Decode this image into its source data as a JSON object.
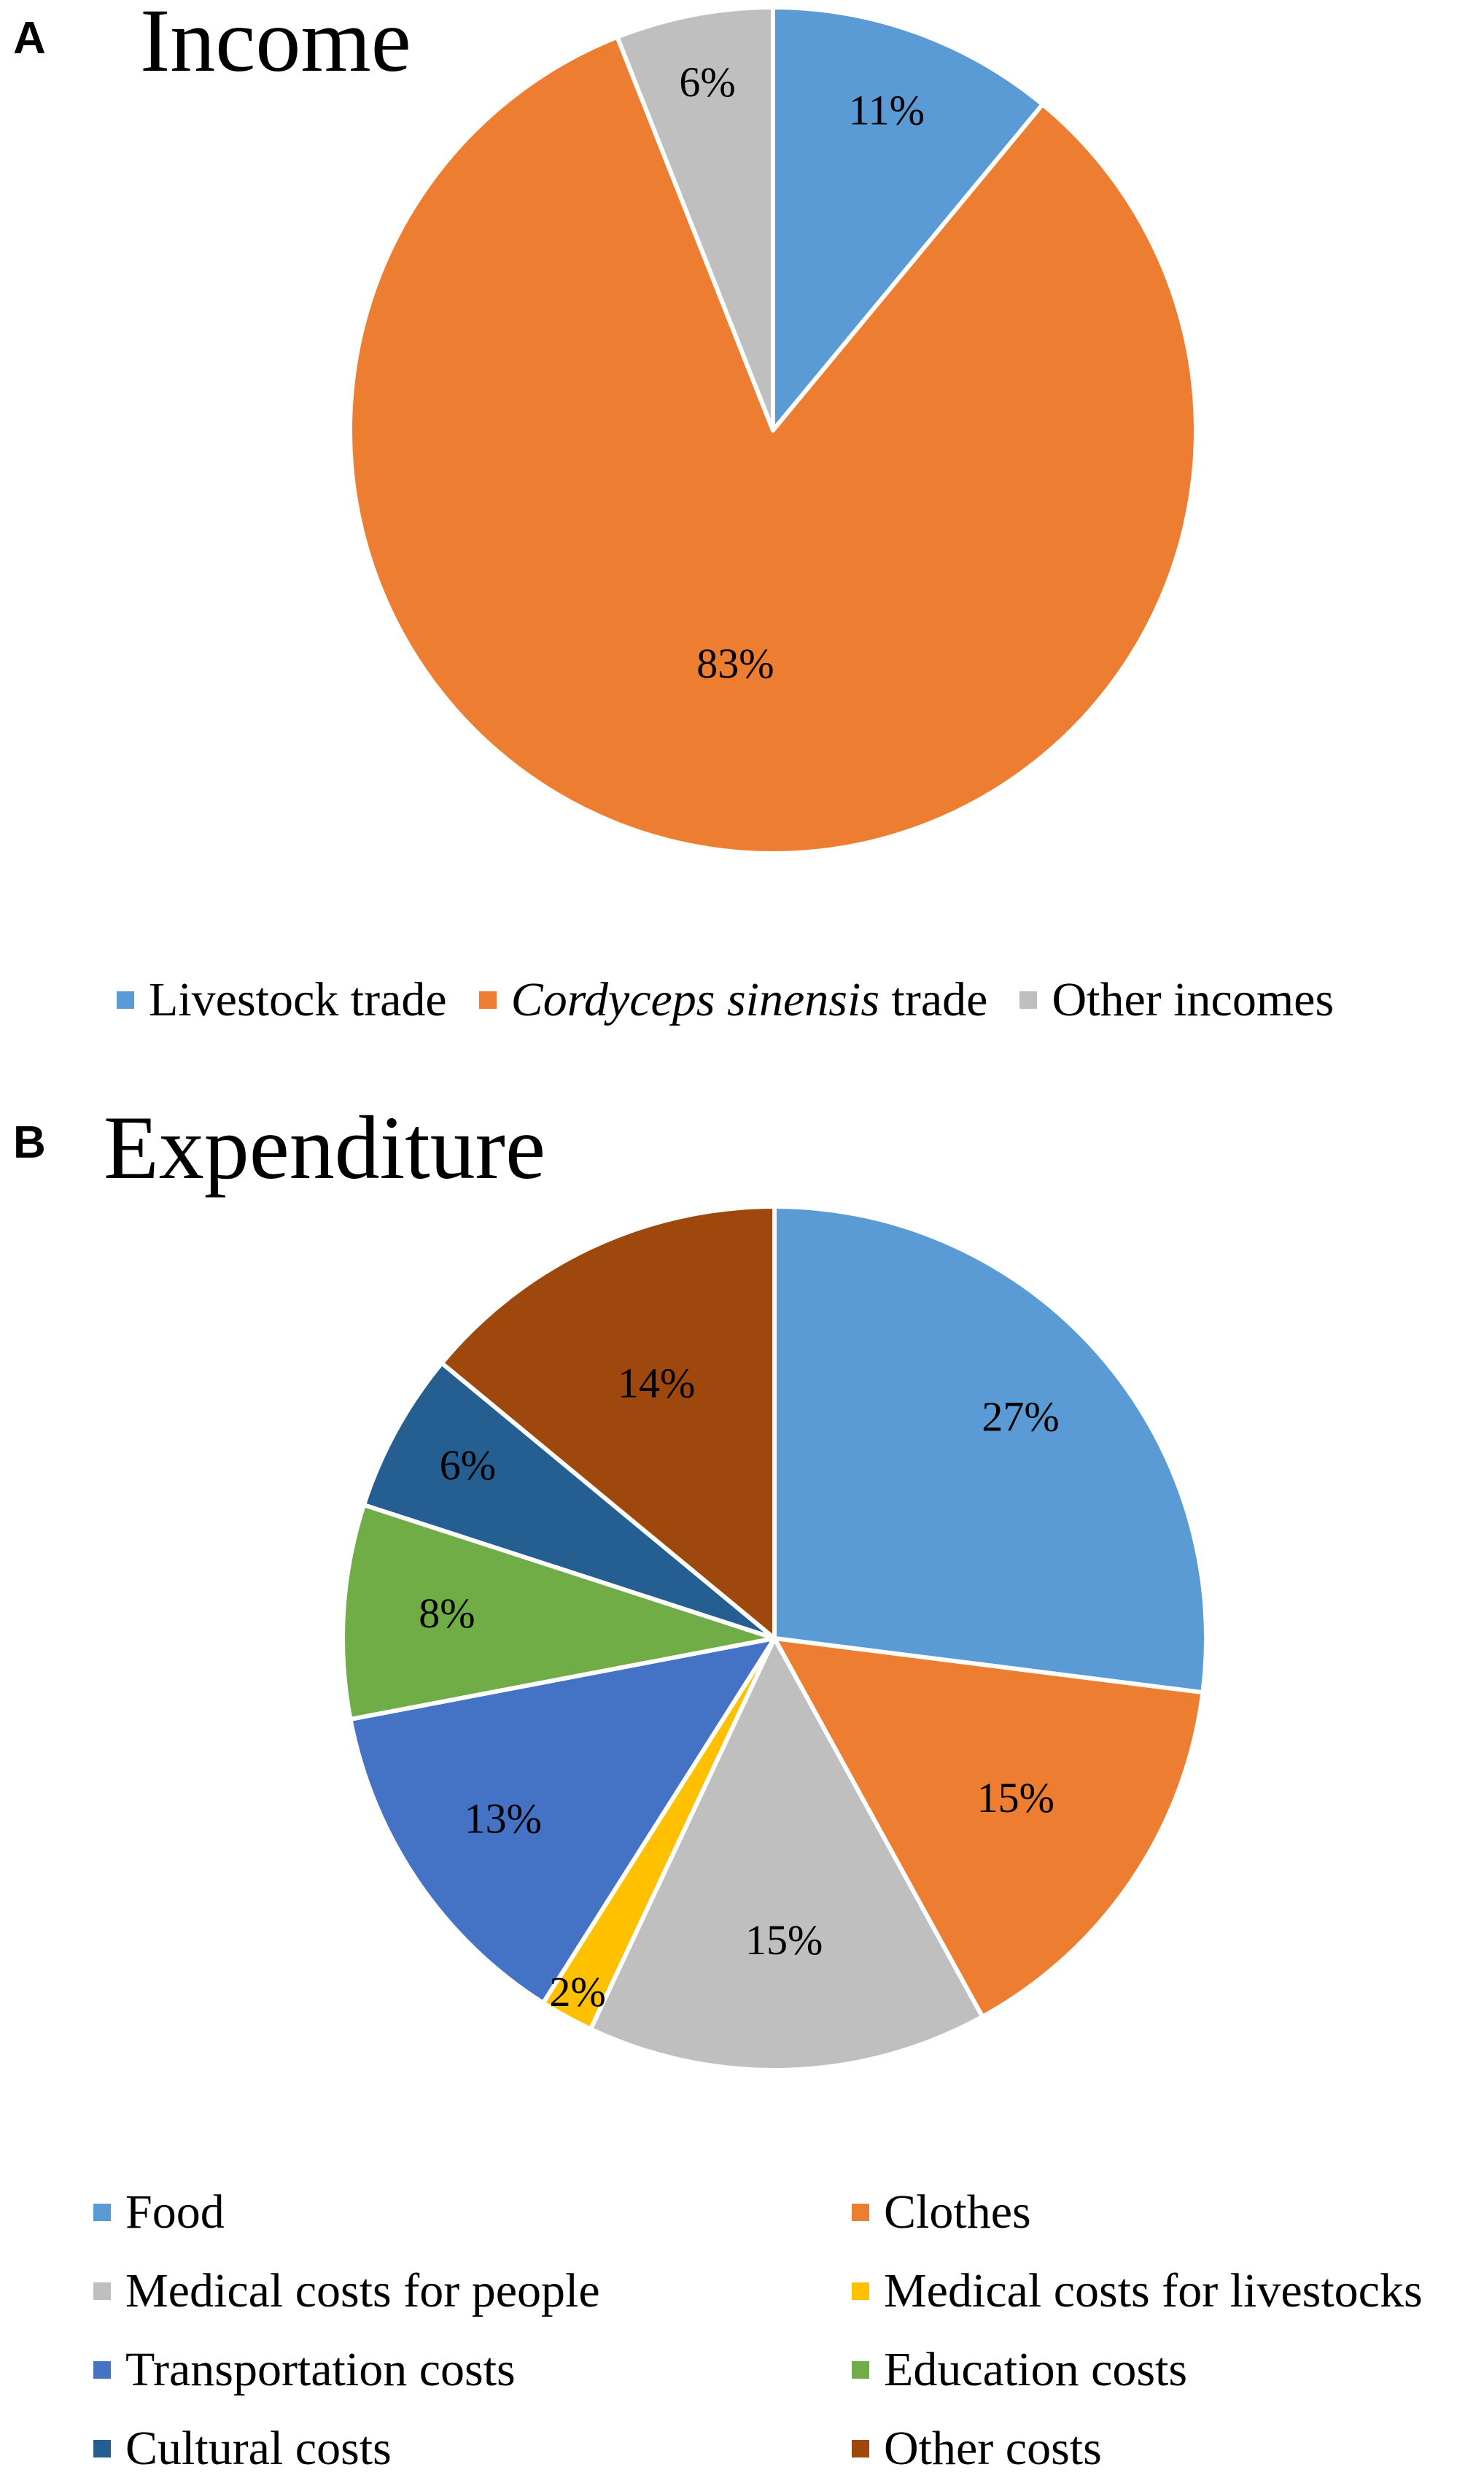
{
  "chart_data": [
    {
      "type": "pie",
      "panel_label": "A",
      "title": "Income",
      "legend_position": "bottom",
      "slices": [
        {
          "name": "Livestock trade",
          "value": 11,
          "label": "11%",
          "color": "#5b9bd5"
        },
        {
          "name": "Cordyceps sinensis trade",
          "name_italic_part": "Cordyceps sinensis",
          "name_rest": " trade",
          "value": 83,
          "label": "83%",
          "color": "#ed7d31"
        },
        {
          "name": "Other incomes",
          "value": 6,
          "label": "6%",
          "color": "#bfbfbf"
        }
      ]
    },
    {
      "type": "pie",
      "panel_label": "B",
      "title": "Expenditure",
      "legend_position": "bottom",
      "slices": [
        {
          "name": "Food",
          "value": 27,
          "label": "27%",
          "color": "#5b9bd5"
        },
        {
          "name": "Clothes",
          "value": 15,
          "label": "15%",
          "color": "#ed7d31"
        },
        {
          "name": "Medical costs for people",
          "value": 15,
          "label": "15%",
          "color": "#bfbfbf"
        },
        {
          "name": "Medical costs for livestocks",
          "value": 2,
          "label": "2%",
          "color": "#ffc000"
        },
        {
          "name": "Transportation costs",
          "value": 13,
          "label": "13%",
          "color": "#4472c4"
        },
        {
          "name": "Education costs",
          "value": 8,
          "label": "8%",
          "color": "#70ad47"
        },
        {
          "name": "Cultural costs",
          "value": 6,
          "label": "6%",
          "color": "#255e91"
        },
        {
          "name": "Other costs",
          "value": 14,
          "label": "14%",
          "color": "#9e480e"
        }
      ]
    }
  ]
}
